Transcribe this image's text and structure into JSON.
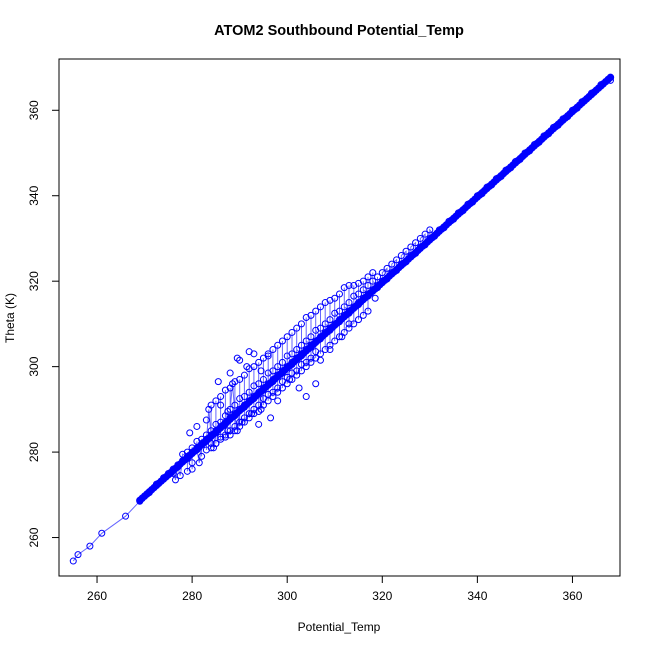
{
  "chart_data": {
    "type": "scatter",
    "title": "ATOM2 Southbound Potential_Temp",
    "xlabel": "Potential_Temp",
    "ylabel": "Theta (K)",
    "xlim": [
      252,
      370
    ],
    "ylim": [
      251,
      372
    ],
    "xticks": [
      260,
      280,
      300,
      320,
      340,
      360
    ],
    "yticks": [
      260,
      280,
      300,
      320,
      340,
      360
    ],
    "grid": false,
    "legend": "none",
    "marker": "open-circle",
    "connected": true,
    "series": [
      {
        "color": "#0000ff",
        "x": [
          255.0,
          256.0,
          258.5,
          261.0,
          266.0,
          269.0,
          271.0,
          272.5,
          274.0,
          275.0,
          276.0,
          277.0,
          278.0,
          279.0,
          280.0,
          281.0,
          282.0,
          283.0,
          284.0,
          285.0,
          286.0,
          287.0,
          288.0,
          289.0,
          290.0,
          291.0,
          292.0,
          293.0,
          294.0,
          295.0,
          296.0,
          297.0,
          298.0,
          299.0,
          300.0,
          301.0,
          302.0,
          303.0,
          304.0,
          305.0,
          306.0,
          307.0,
          308.0,
          309.0,
          310.0,
          311.0,
          312.0,
          313.0,
          314.0,
          315.0,
          316.0,
          317.0,
          318.0,
          319.0,
          320.0,
          322.0,
          324.0,
          326.0,
          328.0,
          330.0,
          332.0,
          334.0,
          336.0,
          338.0,
          340.0,
          342.0,
          344.0,
          346.0,
          348.0,
          350.0,
          352.0,
          354.0,
          356.0,
          358.0,
          360.0,
          362.0,
          364.0,
          366.0,
          368.0,
          276.5,
          277.5,
          279.0,
          280.0,
          281.5,
          282.0,
          283.0,
          284.0,
          285.0,
          286.0,
          287.0,
          288.0,
          289.0,
          290.0,
          291.0,
          292.0,
          293.0,
          294.0,
          295.0,
          296.0,
          297.0,
          298.0,
          299.0,
          300.0,
          301.0,
          302.0,
          303.0,
          304.0,
          305.0,
          306.0,
          283.5,
          284.0,
          285.0,
          286.0,
          287.0,
          288.0,
          288.5,
          289.0,
          290.0,
          291.0,
          292.0,
          293.0,
          294.0,
          295.0,
          296.0,
          297.0,
          298.0,
          299.0,
          300.0,
          301.0,
          302.0,
          303.0,
          304.0,
          305.0,
          306.0,
          307.0,
          308.0,
          309.0,
          310.0,
          311.0,
          312.0,
          313.0,
          314.0,
          315.0,
          316.0,
          317.0,
          318.0,
          284.5,
          285.0,
          286.0,
          287.0,
          288.0,
          289.0,
          289.5,
          290.0,
          291.0,
          292.0,
          293.0,
          294.0,
          294.5,
          295.0,
          296.0,
          297.0,
          298.0,
          299.0,
          300.0,
          301.0,
          302.0,
          303.0,
          304.0,
          305.0,
          306.0,
          307.0,
          308.0,
          309.0,
          310.0,
          311.0,
          312.0,
          313.0,
          314.0,
          315.0,
          316.0,
          317.0,
          278.0,
          279.0,
          280.0,
          281.0,
          282.0,
          283.0,
          284.0,
          285.0,
          286.0,
          287.0,
          287.5,
          288.0,
          289.0,
          290.0,
          291.0,
          292.0,
          293.0,
          294.0,
          295.0,
          296.0,
          297.0,
          298.0,
          299.0,
          300.0,
          301.0,
          302.0,
          303.0,
          304.0,
          305.0,
          306.0,
          307.0,
          308.0,
          309.0,
          310.0,
          311.0,
          312.0,
          313.0,
          314.0,
          315.0,
          316.0,
          317.0,
          318.0,
          319.0,
          320.0,
          321.0,
          322.0,
          323.0,
          324.0,
          325.0,
          326.0,
          327.0,
          328.0,
          329.0,
          330.0,
          275.5,
          277.0,
          279.0,
          281.0,
          283.0,
          285.0,
          287.0,
          289.0,
          291.0,
          293.0,
          295.0,
          297.0,
          299.0,
          301.0,
          303.0,
          305.0,
          307.0,
          309.0,
          311.0,
          313.0,
          315.0,
          317.0,
          319.0,
          321.0,
          323.0,
          325.0,
          327.0,
          329.0,
          331.0,
          333.0,
          335.0,
          337.0,
          339.0,
          341.0,
          343.0,
          345.0,
          347.0,
          349.0,
          351.0,
          353.0,
          355.0,
          357.0,
          359.0,
          361.0
        ],
        "y": [
          254.5,
          256.0,
          258.0,
          261.0,
          265.0,
          268.5,
          270.5,
          272.5,
          274.0,
          275.0,
          276.0,
          277.0,
          278.0,
          279.0,
          280.0,
          281.0,
          282.0,
          283.0,
          284.0,
          285.0,
          286.0,
          287.0,
          288.0,
          289.0,
          290.0,
          291.0,
          292.0,
          293.0,
          294.0,
          295.0,
          296.0,
          297.0,
          298.0,
          299.0,
          300.0,
          301.0,
          302.0,
          303.0,
          304.0,
          305.0,
          306.0,
          307.0,
          308.0,
          309.0,
          310.0,
          311.0,
          312.0,
          313.0,
          314.0,
          315.0,
          316.0,
          317.0,
          318.0,
          319.0,
          320.0,
          322.0,
          324.0,
          326.0,
          328.0,
          330.0,
          332.0,
          334.0,
          336.0,
          338.0,
          340.0,
          342.0,
          344.0,
          346.0,
          348.0,
          350.0,
          352.0,
          354.0,
          356.0,
          358.0,
          360.0,
          362.0,
          364.0,
          366.0,
          367.0,
          273.5,
          274.5,
          275.5,
          276.0,
          277.5,
          279.0,
          280.5,
          281.0,
          282.0,
          283.5,
          284.0,
          285.0,
          286.0,
          287.0,
          288.0,
          289.0,
          290.0,
          291.0,
          292.5,
          293.5,
          294.0,
          295.0,
          296.5,
          297.5,
          298.5,
          299.0,
          300.5,
          301.0,
          302.0,
          303.5,
          290.0,
          291.0,
          292.0,
          293.0,
          294.5,
          295.0,
          296.0,
          296.5,
          297.0,
          298.0,
          299.5,
          300.0,
          301.0,
          302.0,
          303.0,
          304.0,
          305.0,
          306.0,
          307.0,
          308.0,
          309.0,
          310.0,
          311.5,
          312.0,
          313.0,
          314.0,
          315.0,
          315.5,
          316.0,
          317.0,
          318.5,
          319.0,
          319.0,
          319.5,
          320.0,
          321.0,
          322.0,
          281.0,
          282.0,
          283.0,
          283.5,
          284.0,
          285.0,
          285.0,
          286.0,
          287.0,
          288.0,
          289.0,
          289.5,
          290.0,
          291.0,
          292.0,
          293.0,
          294.0,
          295.0,
          296.0,
          297.0,
          298.0,
          299.0,
          300.0,
          301.0,
          302.0,
          303.0,
          304.0,
          305.0,
          306.0,
          307.0,
          308.0,
          309.0,
          310.0,
          311.0,
          312.0,
          313.0,
          279.5,
          280.0,
          281.0,
          282.5,
          283.0,
          284.0,
          285.0,
          286.5,
          287.0,
          288.5,
          289.5,
          290.0,
          291.0,
          292.5,
          293.0,
          294.0,
          295.5,
          296.0,
          297.0,
          298.5,
          299.0,
          300.0,
          301.0,
          302.5,
          303.0,
          304.0,
          305.0,
          306.0,
          307.0,
          308.5,
          309.0,
          310.0,
          311.0,
          312.5,
          313.0,
          314.0,
          315.0,
          316.5,
          317.0,
          318.0,
          319.0,
          320.0,
          321.0,
          322.0,
          323.0,
          324.0,
          325.0,
          326.0,
          327.0,
          328.0,
          329.0,
          330.0,
          331.0,
          332.0,
          275.0,
          276.5,
          278.5,
          280.5,
          282.5,
          284.5,
          286.5,
          288.5,
          290.5,
          292.5,
          294.5,
          296.5,
          298.5,
          300.5,
          302.5,
          304.5,
          306.5,
          308.5,
          310.5,
          312.5,
          314.5,
          316.5,
          318.5,
          320.5,
          322.5,
          324.5,
          326.5,
          328.5,
          330.5,
          332.5,
          334.5,
          336.5,
          338.5,
          340.5,
          342.5,
          344.5,
          346.5,
          348.5,
          350.5,
          352.5,
          354.5,
          356.5,
          358.5,
          360.5
        ]
      }
    ],
    "outliers": {
      "x": [
        285.5,
        288.0,
        289.5,
        290.0,
        291.5,
        292.0,
        293.0,
        294.5,
        296.0,
        283.0,
        281.0,
        279.5,
        286.0,
        290.5,
        292.5,
        294.0,
        296.5,
        298.0,
        300.5,
        302.5,
        304.0,
        306.0,
        307.0,
        309.0,
        311.5,
        313.0,
        318.5,
        276.0,
        280.0,
        284.0,
        287.5
      ],
      "y": [
        296.5,
        298.5,
        302.0,
        301.5,
        300.0,
        303.5,
        303.0,
        299.0,
        302.5,
        287.5,
        286.0,
        284.5,
        291.0,
        287.0,
        289.0,
        286.5,
        288.0,
        292.0,
        297.0,
        295.0,
        293.0,
        296.0,
        301.5,
        304.0,
        307.0,
        310.0,
        316.0,
        275.0,
        277.5,
        282.0,
        285.0
      ]
    }
  }
}
